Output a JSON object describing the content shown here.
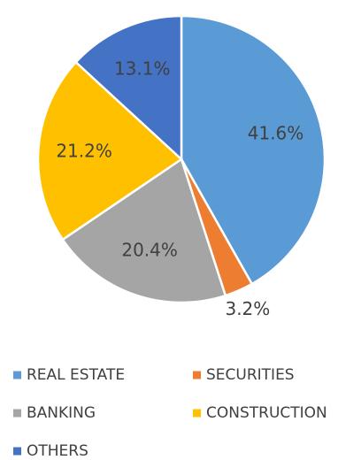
{
  "chart_data": {
    "type": "pie",
    "categories": [
      "REAL ESTATE",
      "SECURITIES",
      "BANKING",
      "CONSTRUCTION",
      "OTHERS"
    ],
    "values": [
      41.6,
      3.2,
      20.4,
      21.2,
      13.1
    ],
    "value_labels": [
      "41.6%",
      "3.2%",
      "20.4%",
      "21.2%",
      "13.1%"
    ],
    "colors": [
      "#5b9bd5",
      "#ed7d31",
      "#a5a5a5",
      "#ffc000",
      "#4472c4"
    ],
    "legend": "bottom"
  }
}
